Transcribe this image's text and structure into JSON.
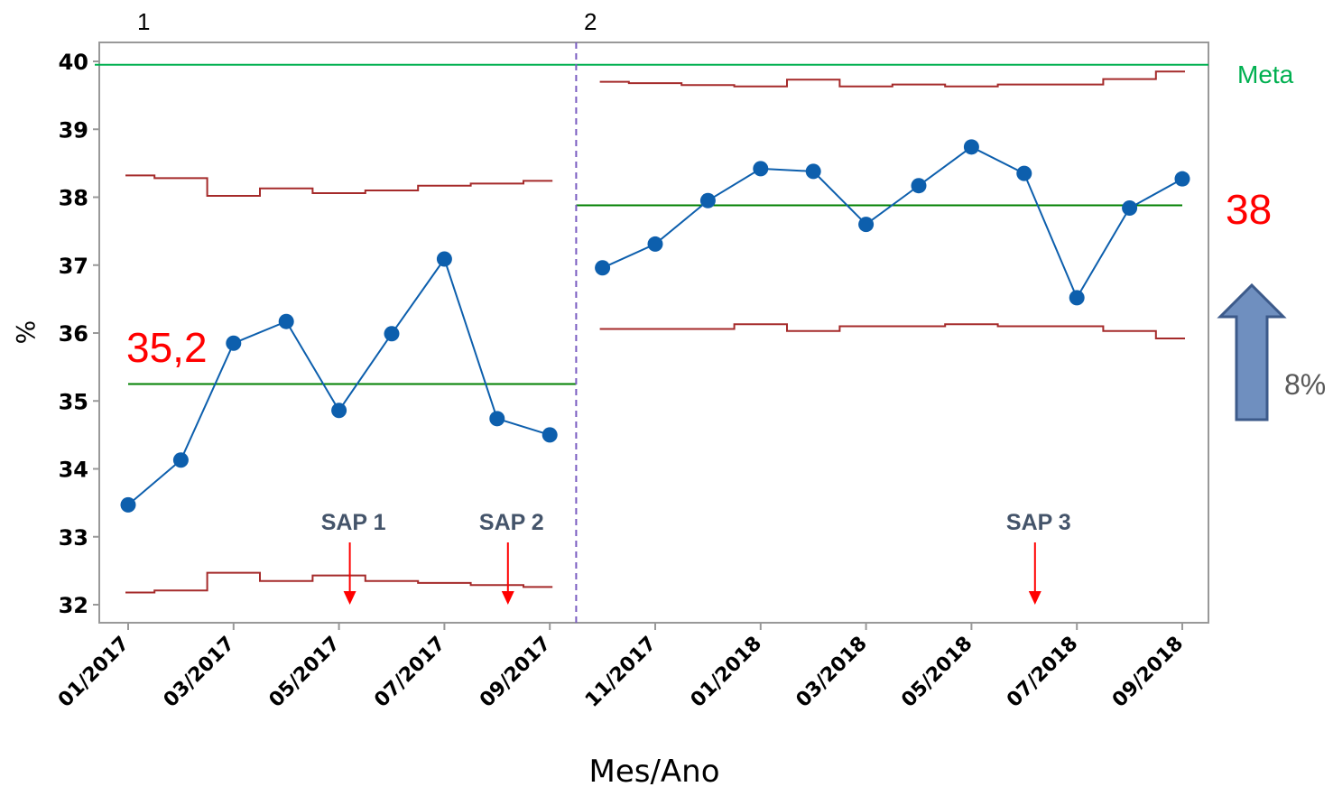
{
  "chart_data": {
    "type": "line",
    "xlabel": "Mes/Ano",
    "ylabel": "%",
    "ylim": [
      32,
      40
    ],
    "yticks": [
      32,
      33,
      34,
      35,
      36,
      37,
      38,
      39,
      40
    ],
    "xtick_labels": [
      "01/2017",
      "03/2017",
      "05/2017",
      "07/2017",
      "09/2017",
      "11/2017",
      "01/2018",
      "03/2018",
      "05/2018",
      "07/2018",
      "09/2018"
    ],
    "categories": [
      "01/2017",
      "02/2017",
      "03/2017",
      "04/2017",
      "05/2017",
      "06/2017",
      "07/2017",
      "08/2017",
      "09/2017",
      "10/2017",
      "11/2017",
      "12/2017",
      "01/2018",
      "02/2018",
      "03/2018",
      "04/2018",
      "05/2018",
      "06/2018",
      "07/2018",
      "08/2018",
      "09/2018"
    ],
    "series": [
      {
        "values": [
          33.47,
          34.13,
          35.85,
          36.17,
          34.86,
          35.99,
          37.09,
          34.74,
          34.5,
          36.96,
          37.31,
          37.95,
          38.42,
          38.38,
          37.6,
          38.17,
          38.74,
          38.35,
          36.52,
          37.84,
          38.27
        ]
      }
    ],
    "centerlines": [
      {
        "stage": "1",
        "value": 35.25
      },
      {
        "stage": "2",
        "value": 37.88
      }
    ],
    "upper_limits": [
      38.32,
      38.28,
      38.02,
      38.13,
      38.06,
      38.1,
      38.17,
      38.2,
      38.24,
      39.7,
      39.68,
      39.65,
      39.63,
      39.73,
      39.63,
      39.66,
      39.63,
      39.66,
      39.66,
      39.74,
      39.85
    ],
    "lower_limits": [
      32.18,
      32.21,
      32.47,
      32.35,
      32.43,
      32.35,
      32.32,
      32.29,
      32.26,
      36.06,
      36.06,
      36.06,
      36.13,
      36.03,
      36.1,
      36.1,
      36.13,
      36.1,
      36.1,
      36.03,
      35.92
    ],
    "meta_value": 39.95,
    "stages": [
      {
        "label": "1",
        "start_index": 0
      },
      {
        "label": "2",
        "start_index": 9
      }
    ],
    "annotations": [
      {
        "label": "SAP 1",
        "at": "05/2017"
      },
      {
        "label": "SAP 2",
        "at": "08/2017"
      },
      {
        "label": "SAP 3",
        "at": "06/2018"
      }
    ],
    "meta_label": "Meta",
    "stage1_mean_label": "35,2",
    "stage2_mean_label": "38",
    "improvement_label": "8%",
    "colors": {
      "data": "#0d5fad",
      "limits": "#a52a2a",
      "centerline": "#008000",
      "meta": "#00b050",
      "stage_divider": "#7a5cc0",
      "annotation_arrow": "#ff0000",
      "arrow_fill": "#6f8fbf",
      "arrow_stroke": "#3c5a8a"
    }
  }
}
